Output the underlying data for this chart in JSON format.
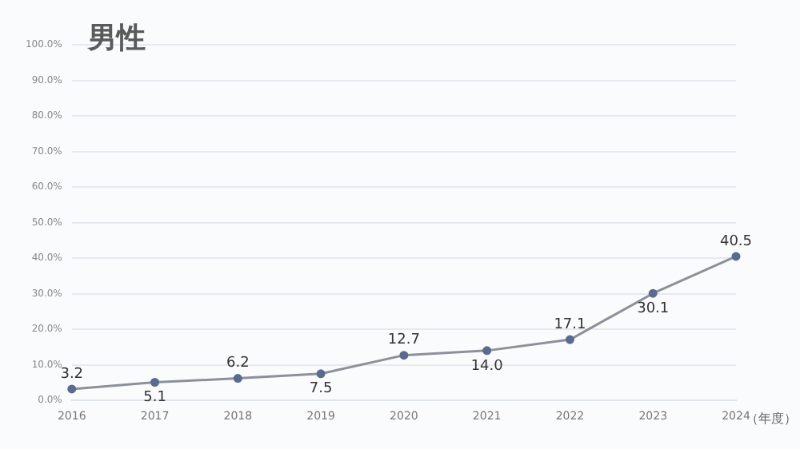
{
  "chart_data": {
    "type": "line",
    "title": "男性",
    "xlabel": "（年度）",
    "categories": [
      "2016",
      "2017",
      "2018",
      "2019",
      "2020",
      "2021",
      "2022",
      "2023",
      "2024"
    ],
    "series": [
      {
        "color": "#8c9099",
        "values": [
          3.2,
          5.1,
          6.2,
          7.5,
          12.7,
          14.0,
          17.1,
          30.1,
          40.5
        ],
        "value_labels": [
          "3.2",
          "5.1",
          "6.2",
          "7.5",
          "12.7",
          "14.0",
          "17.1",
          "30.1",
          "40.5"
        ]
      }
    ],
    "ylim": [
      0,
      100
    ],
    "yticks": [
      {
        "value": 0,
        "label": "0.0%"
      },
      {
        "value": 10,
        "label": "10.0%"
      },
      {
        "value": 20,
        "label": "20.0%"
      },
      {
        "value": 30,
        "label": "30.0%"
      },
      {
        "value": 40,
        "label": "40.0%"
      },
      {
        "value": 50,
        "label": "50.0%"
      },
      {
        "value": 60,
        "label": "60.0%"
      },
      {
        "value": 70,
        "label": "70.0%"
      },
      {
        "value": 80,
        "label": "80.0%"
      },
      {
        "value": 90,
        "label": "90.0%"
      },
      {
        "value": 100,
        "label": "100.0%"
      }
    ],
    "grid": "y",
    "marker": "circle",
    "line_style": "solid",
    "legend": false
  }
}
